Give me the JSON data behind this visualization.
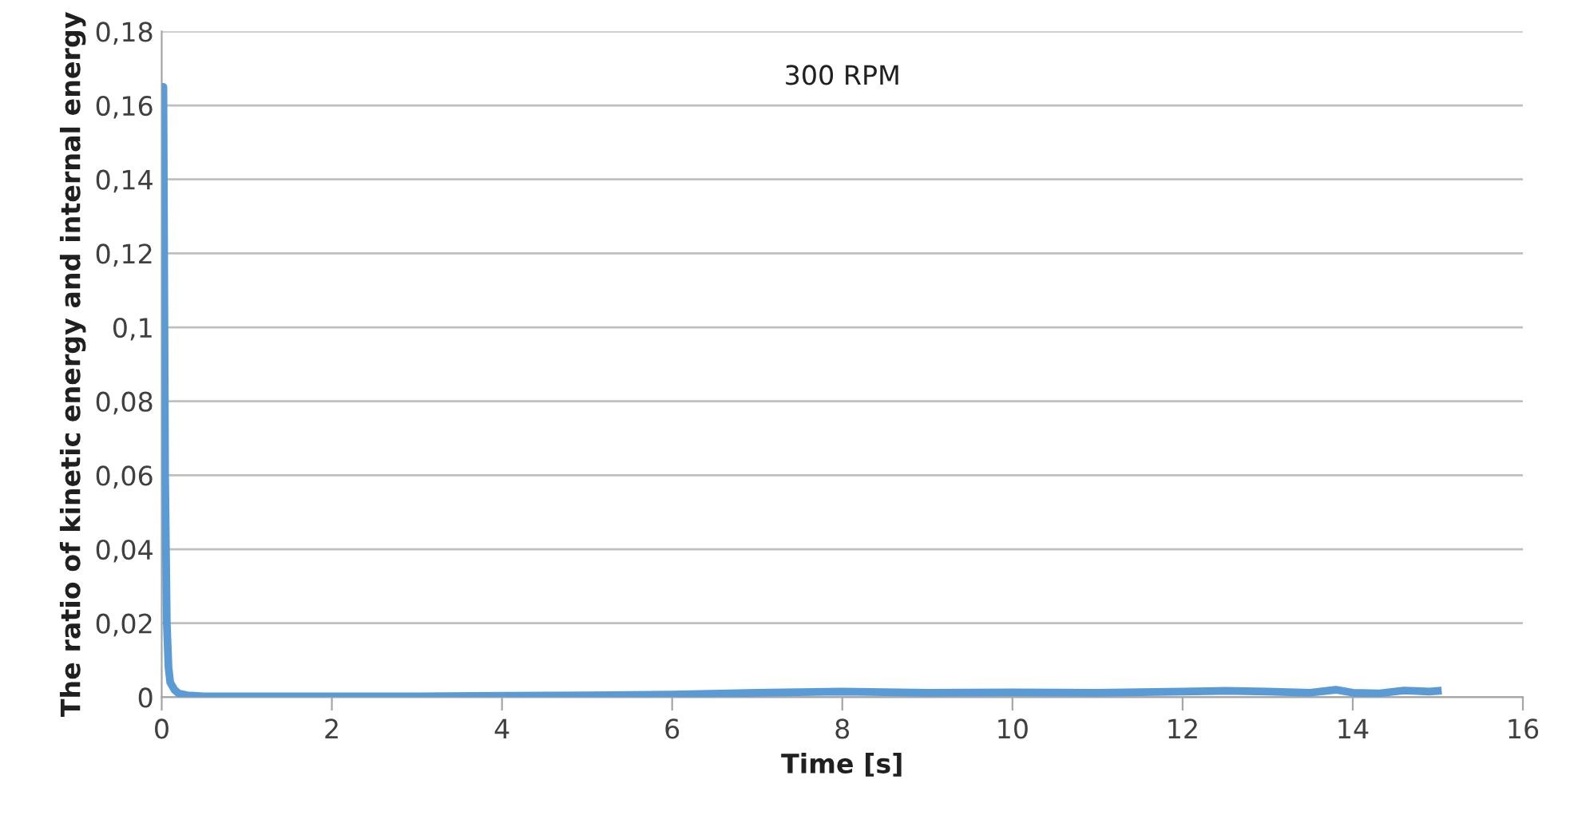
{
  "chart_data": {
    "type": "line",
    "title": "300 RPM",
    "xlabel": "Time [s]",
    "ylabel": "The ratio of kinetic energy and internal energy",
    "x": [
      0,
      0.02,
      0.04,
      0.06,
      0.08,
      0.1,
      0.15,
      0.2,
      0.3,
      0.5,
      1,
      2,
      3,
      4,
      5,
      6,
      7,
      8,
      9,
      10,
      11,
      12,
      12.5,
      13,
      13.5,
      13.8,
      14,
      14.3,
      14.6,
      14.9,
      15
    ],
    "series": [
      {
        "color": "#5b9bd5",
        "values": [
          0.165,
          0.165,
          0.06,
          0.02,
          0.008,
          0.004,
          0.002,
          0.001,
          0.0005,
          0.0002,
          0.0002,
          0.0002,
          0.0002,
          0.0004,
          0.0005,
          0.0007,
          0.0012,
          0.0015,
          0.0012,
          0.0013,
          0.0012,
          0.0015,
          0.0017,
          0.0015,
          0.0012,
          0.002,
          0.0012,
          0.001,
          0.0018,
          0.0015,
          0.0017
        ]
      }
    ],
    "xlim": [
      0,
      16
    ],
    "xticks": [
      0,
      2,
      4,
      6,
      8,
      10,
      12,
      14,
      16
    ],
    "ylim": [
      0,
      0.18
    ],
    "yticks": [
      0,
      {
        "value": 0.02,
        "label": "0,02"
      },
      {
        "value": 0.04,
        "label": "0,04"
      },
      {
        "value": 0.06,
        "label": "0,06"
      },
      {
        "value": 0.08,
        "label": "0,08"
      },
      {
        "value": 0.1,
        "label": "0,1"
      },
      {
        "value": 0.12,
        "label": "0,12"
      },
      {
        "value": 0.14,
        "label": "0,14"
      },
      {
        "value": 0.16,
        "label": "0,16"
      },
      {
        "value": 0.18,
        "label": "0,18"
      }
    ],
    "grid": "y",
    "marker": "none",
    "line_style": "solid",
    "legend": false
  }
}
